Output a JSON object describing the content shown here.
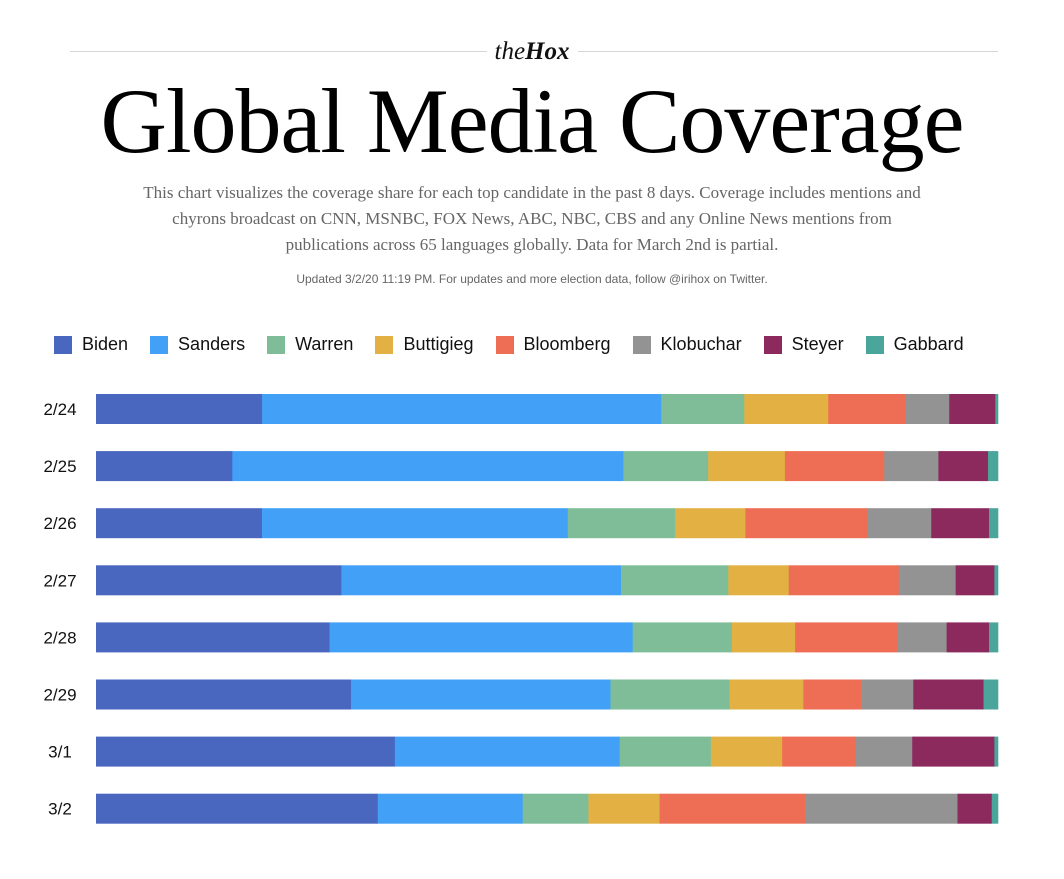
{
  "brand": {
    "prefix": "the",
    "name": "Hox"
  },
  "title": "Global Media Coverage",
  "subtitle": "This chart visualizes the coverage share for each top candidate in the past 8 days. Coverage includes mentions and chyrons broadcast on CNN, MSNBC, FOX News, ABC, NBC, CBS and any Online News mentions from publications across 65 languages globally. Data for March 2nd is partial.",
  "updated": "Updated 3/2/20 11:19 PM. For updates and more election data, follow @irihox on Twitter.",
  "chart_data": {
    "type": "bar",
    "orientation": "horizontal",
    "stacked": "100%",
    "unit": "percent share",
    "legend_position": "top",
    "grid": false,
    "categories": [
      "2/24",
      "2/25",
      "2/26",
      "2/27",
      "2/28",
      "2/29",
      "3/1",
      "3/2"
    ],
    "series": [
      {
        "name": "Biden",
        "color": "#4a67c0",
        "values": [
          18.4,
          15.1,
          18.4,
          27.2,
          25.9,
          28.3,
          33.1,
          31.3
        ]
      },
      {
        "name": "Sanders",
        "color": "#42a1f7",
        "values": [
          44.2,
          43.3,
          33.9,
          31.0,
          33.6,
          28.8,
          24.9,
          16.1
        ]
      },
      {
        "name": "Warren",
        "color": "#7ebd98",
        "values": [
          9.2,
          9.4,
          11.9,
          11.9,
          11.0,
          13.2,
          10.1,
          7.3
        ]
      },
      {
        "name": "Buttigieg",
        "color": "#e2b043",
        "values": [
          9.3,
          8.5,
          7.8,
          6.7,
          7.0,
          8.2,
          7.9,
          7.9
        ]
      },
      {
        "name": "Bloomberg",
        "color": "#ee6e55",
        "values": [
          8.6,
          11.0,
          13.5,
          12.2,
          11.3,
          6.4,
          8.1,
          16.2
        ]
      },
      {
        "name": "Klobuchar",
        "color": "#939393",
        "values": [
          4.8,
          6.0,
          7.1,
          6.3,
          5.5,
          5.8,
          6.3,
          16.9
        ]
      },
      {
        "name": "Steyer",
        "color": "#8c2a5e",
        "values": [
          5.1,
          5.5,
          6.4,
          4.3,
          4.7,
          7.8,
          9.1,
          3.8
        ]
      },
      {
        "name": "Gabbard",
        "color": "#4aa59a",
        "values": [
          0.3,
          1.1,
          1.0,
          0.4,
          1.0,
          1.6,
          0.4,
          0.7
        ]
      }
    ]
  }
}
